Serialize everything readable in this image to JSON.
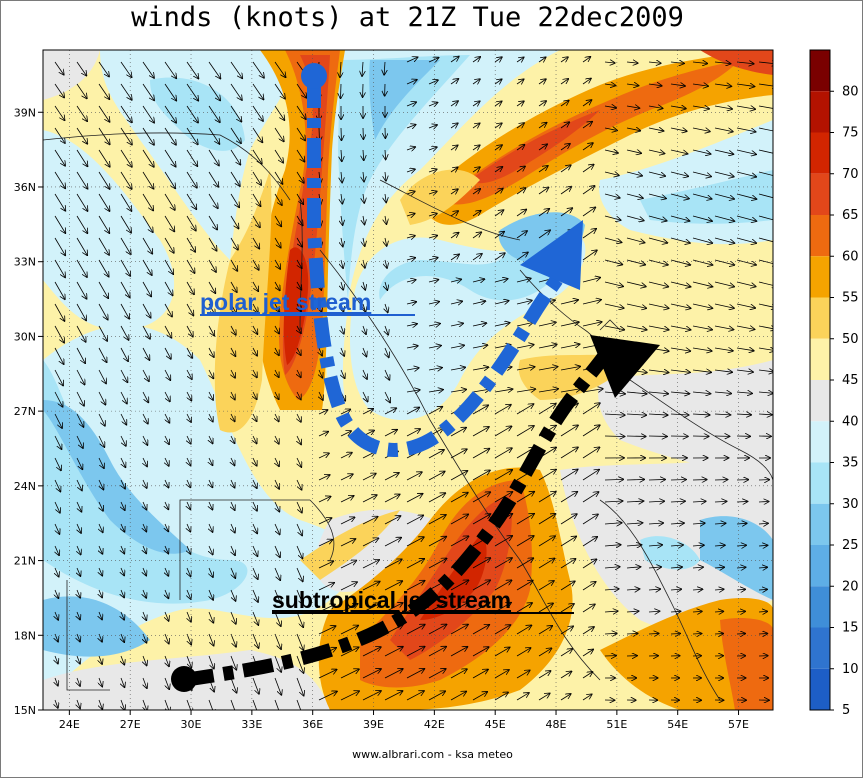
{
  "title": "winds (knots) at 21Z Tue 22dec2009",
  "footer": "www.albrari.com - ksa meteo",
  "map": {
    "lon_range": [
      22.7,
      58.7
    ],
    "lat_range": [
      15,
      41.5
    ],
    "lon_ticks": [
      "24E",
      "27E",
      "30E",
      "33E",
      "36E",
      "39E",
      "42E",
      "45E",
      "48E",
      "51E",
      "54E",
      "57E"
    ],
    "lon_values": [
      24,
      27,
      30,
      33,
      36,
      39,
      42,
      45,
      48,
      51,
      54,
      57
    ],
    "lat_ticks": [
      "15N",
      "18N",
      "21N",
      "24N",
      "27N",
      "30N",
      "33N",
      "36N",
      "39N"
    ],
    "lat_values": [
      15,
      18,
      21,
      24,
      27,
      30,
      33,
      36,
      39
    ],
    "grid": "dotted"
  },
  "colorbar": {
    "levels": [
      "80",
      "75",
      "70",
      "65",
      "60",
      "55",
      "50",
      "45",
      "40",
      "35",
      "30",
      "25",
      "20",
      "15",
      "10",
      "5"
    ],
    "colors": [
      "#7a0000",
      "#b31200",
      "#d22500",
      "#e2471a",
      "#ee6a10",
      "#f5a300",
      "#fbd35a",
      "#fdf2a8",
      "#e8e8e8",
      "#d2f2fa",
      "#a8e4f6",
      "#7cc7ee",
      "#5eaee6",
      "#3f8ed8",
      "#2f74cf",
      "#1d5ec6"
    ]
  },
  "annotations": {
    "polar_label": "polar jet stream",
    "subtropical_label": "subtropical jet stream",
    "polar_color": "#1f66d6",
    "subtropical_color": "#000000"
  }
}
